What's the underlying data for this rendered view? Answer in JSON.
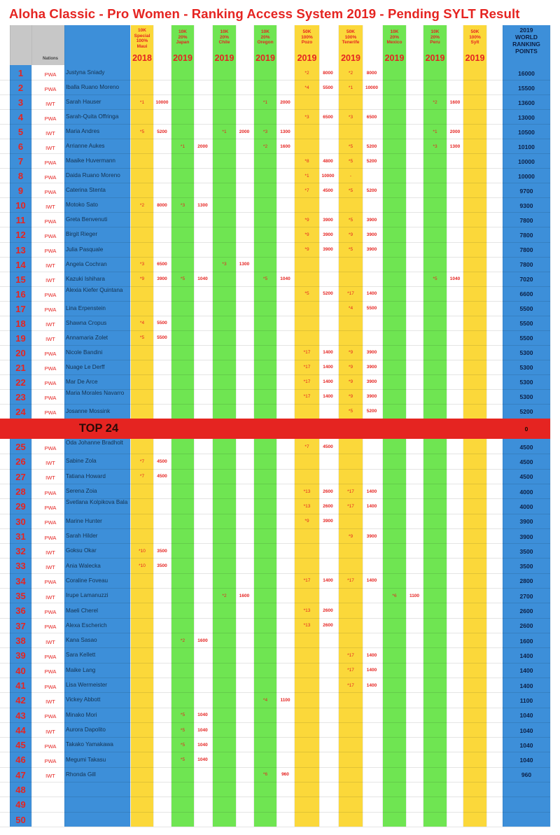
{
  "title": "Aloha Classic - Pro Women - Ranking Access System 2019 - Pending SYLT Result",
  "header": {
    "nations_label": "Nations",
    "events": [
      {
        "lines": [
          "10K",
          "Special",
          "100%",
          "Maui"
        ],
        "year": "2018"
      },
      {
        "lines": [
          "10K",
          "20%",
          "Japan"
        ],
        "year": "2019"
      },
      {
        "lines": [
          "10K",
          "20%",
          "Chile"
        ],
        "year": "2019"
      },
      {
        "lines": [
          "10K",
          "20%",
          "Oregon"
        ],
        "year": "2019"
      },
      {
        "lines": [
          "50K",
          "100%",
          "Pozo"
        ],
        "year": "2019"
      },
      {
        "lines": [
          "50K",
          "100%",
          "Tenerife"
        ],
        "year": "2019"
      },
      {
        "lines": [
          "10K",
          "20%",
          "Mexico"
        ],
        "year": "2019"
      },
      {
        "lines": [
          "10K",
          "20%",
          "Peru"
        ],
        "year": "2019"
      },
      {
        "lines": [
          "50K",
          "100%",
          "Sylt"
        ],
        "year": "2019"
      }
    ],
    "total_lines": [
      "2019",
      "WORLD",
      "RANKING",
      "POINTS"
    ]
  },
  "top24_label": "TOP 24",
  "top24_points": "0",
  "colors": {
    "title_red": "#e52421",
    "yellow": "#fbd83a",
    "green": "#6fe552",
    "blue": "#3d8fd9",
    "grey": "#c7c7c7",
    "top24_red": "#e52421"
  },
  "rows": [
    {
      "rank": "1",
      "nation": "PWA",
      "name": "Justyna Sniady",
      "results": [
        null,
        null,
        null,
        null,
        [
          "*2",
          "8000"
        ],
        [
          "*2",
          "8000"
        ],
        null,
        null,
        null
      ],
      "total": "16000"
    },
    {
      "rank": "2",
      "nation": "PWA",
      "name": "Iballa Ruano Moreno",
      "results": [
        null,
        null,
        null,
        null,
        [
          "*4",
          "5500"
        ],
        [
          "*1",
          "10000"
        ],
        null,
        null,
        null
      ],
      "total": "15500"
    },
    {
      "rank": "3",
      "nation": "IWT",
      "name": "Sarah Hauser",
      "results": [
        [
          "*1",
          "10000"
        ],
        null,
        null,
        [
          "*1",
          "2000"
        ],
        null,
        null,
        null,
        [
          "*2",
          "1600"
        ],
        null
      ],
      "total": "13600"
    },
    {
      "rank": "4",
      "nation": "PWA",
      "name": "Sarah-Quita Offringa",
      "results": [
        null,
        null,
        null,
        null,
        [
          "*3",
          "6500"
        ],
        [
          "*3",
          "6500"
        ],
        null,
        null,
        null
      ],
      "total": "13000"
    },
    {
      "rank": "5",
      "nation": "IWT",
      "name": "Maria Andres",
      "results": [
        [
          "*5",
          "5200"
        ],
        null,
        [
          "*1",
          "2000"
        ],
        [
          "*3",
          "1300"
        ],
        null,
        null,
        null,
        [
          "*1",
          "2000"
        ],
        null
      ],
      "total": "10500"
    },
    {
      "rank": "6",
      "nation": "IWT",
      "name": "Arrianne Aukes",
      "results": [
        null,
        [
          "*1",
          "2000"
        ],
        null,
        [
          "*2",
          "1600"
        ],
        null,
        [
          "*5",
          "5200"
        ],
        null,
        [
          "*3",
          "1300"
        ],
        null
      ],
      "total": "10100"
    },
    {
      "rank": "7",
      "nation": "PWA",
      "name": "Maaike Huvermann",
      "results": [
        null,
        null,
        null,
        null,
        [
          "*8",
          "4800"
        ],
        [
          "*5",
          "5200"
        ],
        null,
        null,
        null
      ],
      "total": "10000"
    },
    {
      "rank": "8",
      "nation": "PWA",
      "name": "Daida Ruano Moreno",
      "results": [
        null,
        null,
        null,
        null,
        [
          "*1",
          "10000"
        ],
        [
          "-",
          ""
        ],
        null,
        null,
        null
      ],
      "total": "10000"
    },
    {
      "rank": "9",
      "nation": "PWA",
      "name": "Caterina Stenta",
      "results": [
        null,
        null,
        null,
        null,
        [
          "*7",
          "4500"
        ],
        [
          "*5",
          "5200"
        ],
        null,
        null,
        null
      ],
      "total": "9700"
    },
    {
      "rank": "10",
      "nation": "IWT",
      "name": "Motoko Sato",
      "results": [
        [
          "*2",
          "8000"
        ],
        [
          "*3",
          "1300"
        ],
        null,
        null,
        null,
        null,
        null,
        null,
        null
      ],
      "total": "9300"
    },
    {
      "rank": "11",
      "nation": "PWA",
      "name": "Greta Benvenuti",
      "results": [
        null,
        null,
        null,
        null,
        [
          "*9",
          "3900"
        ],
        [
          "*5",
          "3900"
        ],
        null,
        null,
        null
      ],
      "total": "7800"
    },
    {
      "rank": "12",
      "nation": "PWA",
      "name": "Birgit Rieger",
      "results": [
        null,
        null,
        null,
        null,
        [
          "*9",
          "3900"
        ],
        [
          "*9",
          "3900"
        ],
        null,
        null,
        null
      ],
      "total": "7800"
    },
    {
      "rank": "13",
      "nation": "PWA",
      "name": "Julia Pasquale",
      "results": [
        null,
        null,
        null,
        null,
        [
          "*9",
          "3900"
        ],
        [
          "*5",
          "3900"
        ],
        null,
        null,
        null
      ],
      "total": "7800"
    },
    {
      "rank": "14",
      "nation": "IWT",
      "name": "Angela Cochran",
      "results": [
        [
          "*3",
          "6500"
        ],
        null,
        [
          "*3",
          "1300"
        ],
        null,
        null,
        null,
        null,
        null,
        null
      ],
      "total": "7800"
    },
    {
      "rank": "15",
      "nation": "IWT",
      "name": "Kazuki Ishihara",
      "results": [
        [
          "*9",
          "3900"
        ],
        [
          "*5",
          "1040"
        ],
        null,
        [
          "*5",
          "1040"
        ],
        null,
        null,
        null,
        [
          "*5",
          "1040"
        ],
        null
      ],
      "total": "7020"
    },
    {
      "rank": "16",
      "nation": "PWA",
      "name": "Alexia Kiefer Quintana",
      "results": [
        null,
        null,
        null,
        null,
        [
          "*5",
          "5200"
        ],
        [
          "*17",
          "1400"
        ],
        null,
        null,
        null
      ],
      "total": "6600"
    },
    {
      "rank": "17",
      "nation": "PWA",
      "name": "Lina Erpenstein",
      "results": [
        null,
        null,
        null,
        null,
        null,
        [
          "*4",
          "5500"
        ],
        null,
        null,
        null
      ],
      "total": "5500"
    },
    {
      "rank": "18",
      "nation": "IWT",
      "name": "Shawna Cropus",
      "results": [
        [
          "*4",
          "5500"
        ],
        null,
        null,
        null,
        null,
        null,
        null,
        null,
        null
      ],
      "total": "5500"
    },
    {
      "rank": "19",
      "nation": "IWT",
      "name": "Annamaria Zolet",
      "results": [
        [
          "*5",
          "5500"
        ],
        null,
        null,
        null,
        null,
        null,
        null,
        null,
        null
      ],
      "total": "5500"
    },
    {
      "rank": "20",
      "nation": "PWA",
      "name": "Nicole Bandini",
      "results": [
        null,
        null,
        null,
        null,
        [
          "*17",
          "1400"
        ],
        [
          "*9",
          "3900"
        ],
        null,
        null,
        null
      ],
      "total": "5300"
    },
    {
      "rank": "21",
      "nation": "PWA",
      "name": "Nuage Le Derff",
      "results": [
        null,
        null,
        null,
        null,
        [
          "*17",
          "1400"
        ],
        [
          "*9",
          "3900"
        ],
        null,
        null,
        null
      ],
      "total": "5300"
    },
    {
      "rank": "22",
      "nation": "PWA",
      "name": "Mar De Arce",
      "results": [
        null,
        null,
        null,
        null,
        [
          "*17",
          "1400"
        ],
        [
          "*9",
          "3900"
        ],
        null,
        null,
        null
      ],
      "total": "5300"
    },
    {
      "rank": "23",
      "nation": "PWA",
      "name": "Maria Morales Navarro",
      "results": [
        null,
        null,
        null,
        null,
        [
          "*17",
          "1400"
        ],
        [
          "*9",
          "3900"
        ],
        null,
        null,
        null
      ],
      "total": "5300"
    },
    {
      "rank": "24",
      "nation": "PWA",
      "name": "Josanne Mossink",
      "results": [
        null,
        null,
        null,
        null,
        null,
        [
          "*5",
          "5200"
        ],
        null,
        null,
        null
      ],
      "total": "5200"
    },
    {
      "rank": "25",
      "nation": "PWA",
      "name": "Oda Johanne Bradholt",
      "results": [
        null,
        null,
        null,
        null,
        [
          "*7",
          "4500"
        ],
        null,
        null,
        null,
        null
      ],
      "total": "4500"
    },
    {
      "rank": "26",
      "nation": "IWT",
      "name": "Sabine Zola",
      "results": [
        [
          "*7",
          "4500"
        ],
        null,
        null,
        null,
        null,
        null,
        null,
        null,
        null
      ],
      "total": "4500"
    },
    {
      "rank": "27",
      "nation": "IWT",
      "name": "Tatiana Howard",
      "results": [
        [
          "*7",
          "4500"
        ],
        null,
        null,
        null,
        null,
        null,
        null,
        null,
        null
      ],
      "total": "4500"
    },
    {
      "rank": "28",
      "nation": "PWA",
      "name": "Serena Zoia",
      "results": [
        null,
        null,
        null,
        null,
        [
          "*13",
          "2600"
        ],
        [
          "*17",
          "1400"
        ],
        null,
        null,
        null
      ],
      "total": "4000"
    },
    {
      "rank": "29",
      "nation": "PWA",
      "name": "Svetlana Kolpikova Bala",
      "results": [
        null,
        null,
        null,
        null,
        [
          "*13",
          "2600"
        ],
        [
          "*17",
          "1400"
        ],
        null,
        null,
        null
      ],
      "total": "4000"
    },
    {
      "rank": "30",
      "nation": "PWA",
      "name": "Marine Hunter",
      "results": [
        null,
        null,
        null,
        null,
        [
          "*9",
          "3900"
        ],
        null,
        null,
        null,
        null
      ],
      "total": "3900"
    },
    {
      "rank": "31",
      "nation": "PWA",
      "name": "Sarah Hilder",
      "results": [
        null,
        null,
        null,
        null,
        null,
        [
          "*9",
          "3900"
        ],
        null,
        null,
        null
      ],
      "total": "3900"
    },
    {
      "rank": "32",
      "nation": "IWT",
      "name": "Goksu Okar",
      "results": [
        [
          "*10",
          "3500"
        ],
        null,
        null,
        null,
        null,
        null,
        null,
        null,
        null
      ],
      "total": "3500"
    },
    {
      "rank": "33",
      "nation": "IWT",
      "name": "Ania Walecka",
      "results": [
        [
          "*10",
          "3500"
        ],
        null,
        null,
        null,
        null,
        null,
        null,
        null,
        null
      ],
      "total": "3500"
    },
    {
      "rank": "34",
      "nation": "PWA",
      "name": "Coraline Foveau",
      "results": [
        null,
        null,
        null,
        null,
        [
          "*17",
          "1400"
        ],
        [
          "*17",
          "1400"
        ],
        null,
        null,
        null
      ],
      "total": "2800"
    },
    {
      "rank": "35",
      "nation": "IWT",
      "name": "Irupe Lamanuzzi",
      "results": [
        null,
        null,
        [
          "*2",
          "1600"
        ],
        null,
        null,
        null,
        [
          "*6",
          "1100"
        ],
        null,
        null
      ],
      "total": "2700"
    },
    {
      "rank": "36",
      "nation": "PWA",
      "name": "Maeli Cherel",
      "results": [
        null,
        null,
        null,
        null,
        [
          "*13",
          "2600"
        ],
        null,
        null,
        null,
        null
      ],
      "total": "2600"
    },
    {
      "rank": "37",
      "nation": "PWA",
      "name": "Alexa Escherich",
      "results": [
        null,
        null,
        null,
        null,
        [
          "*13",
          "2600"
        ],
        null,
        null,
        null,
        null
      ],
      "total": "2600"
    },
    {
      "rank": "38",
      "nation": "IWT",
      "name": "Kana Sasao",
      "results": [
        null,
        [
          "*2",
          "1600"
        ],
        null,
        null,
        null,
        null,
        null,
        null,
        null
      ],
      "total": "1600"
    },
    {
      "rank": "39",
      "nation": "PWA",
      "name": "Sara Kellett",
      "results": [
        null,
        null,
        null,
        null,
        null,
        [
          "*17",
          "1400"
        ],
        null,
        null,
        null
      ],
      "total": "1400"
    },
    {
      "rank": "40",
      "nation": "PWA",
      "name": "Maike Lang",
      "results": [
        null,
        null,
        null,
        null,
        null,
        [
          "*17",
          "1400"
        ],
        null,
        null,
        null
      ],
      "total": "1400"
    },
    {
      "rank": "41",
      "nation": "PWA",
      "name": "Lisa Wermeister",
      "results": [
        null,
        null,
        null,
        null,
        null,
        [
          "*17",
          "1400"
        ],
        null,
        null,
        null
      ],
      "total": "1400"
    },
    {
      "rank": "42",
      "nation": "IWT",
      "name": "Vickey Abbott",
      "results": [
        null,
        null,
        null,
        [
          "*4",
          "1100"
        ],
        null,
        null,
        null,
        null,
        null
      ],
      "total": "1100"
    },
    {
      "rank": "43",
      "nation": "PWA",
      "name": "Minako Mori",
      "results": [
        null,
        [
          "*5",
          "1040"
        ],
        null,
        null,
        null,
        null,
        null,
        null,
        null
      ],
      "total": "1040"
    },
    {
      "rank": "44",
      "nation": "IWT",
      "name": "Aurora Dapolito",
      "results": [
        null,
        [
          "*5",
          "1040"
        ],
        null,
        null,
        null,
        null,
        null,
        null,
        null
      ],
      "total": "1040"
    },
    {
      "rank": "45",
      "nation": "PWA",
      "name": "Takako Yamakawa",
      "results": [
        null,
        [
          "*5",
          "1040"
        ],
        null,
        null,
        null,
        null,
        null,
        null,
        null
      ],
      "total": "1040"
    },
    {
      "rank": "46",
      "nation": "PWA",
      "name": "Megumi Takasu",
      "results": [
        null,
        [
          "*5",
          "1040"
        ],
        null,
        null,
        null,
        null,
        null,
        null,
        null
      ],
      "total": "1040"
    },
    {
      "rank": "47",
      "nation": "IWT",
      "name": "Rhonda Gill",
      "results": [
        null,
        null,
        null,
        [
          "*6",
          "960"
        ],
        null,
        null,
        null,
        null,
        null
      ],
      "total": "960"
    },
    {
      "rank": "48",
      "nation": "",
      "name": "",
      "results": [
        null,
        null,
        null,
        null,
        null,
        null,
        null,
        null,
        null
      ],
      "total": ""
    },
    {
      "rank": "49",
      "nation": "",
      "name": "",
      "results": [
        null,
        null,
        null,
        null,
        null,
        null,
        null,
        null,
        null
      ],
      "total": ""
    },
    {
      "rank": "50",
      "nation": "",
      "name": "",
      "results": [
        null,
        null,
        null,
        null,
        null,
        null,
        null,
        null,
        null
      ],
      "total": ""
    }
  ]
}
